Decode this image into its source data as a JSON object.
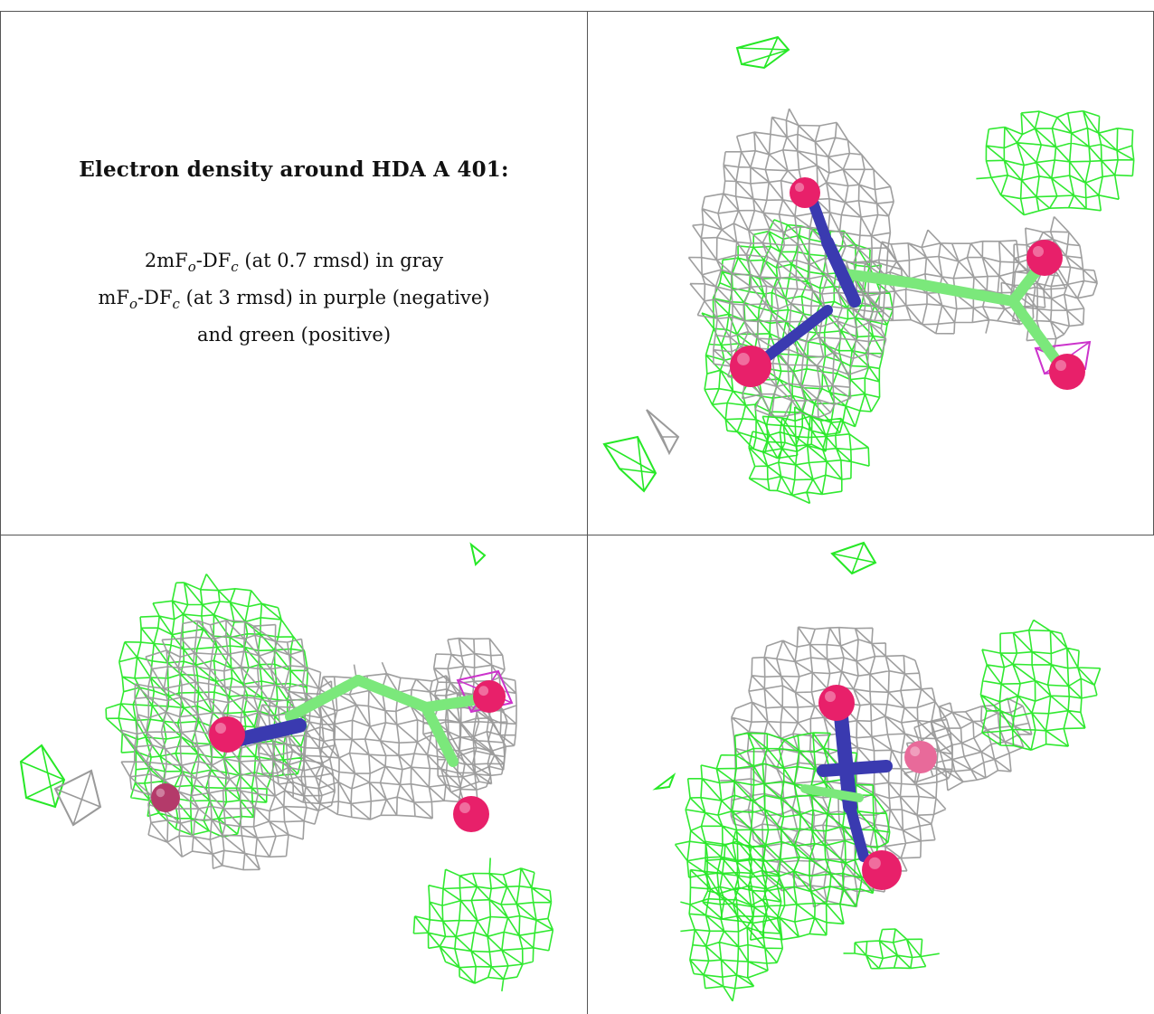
{
  "caption": {
    "title": "Electron density around HDA A 401:",
    "line1_pre": "2mF",
    "line1_sub1": "o",
    "line1_mid": "-DF",
    "line1_sub2": "c",
    "line1_post": " (at 0.7 rmsd) in gray",
    "line2_pre": "mF",
    "line2_sub1": "o",
    "line2_mid": "-DF",
    "line2_sub2": "c",
    "line2_post": " (at 3 rmsd) in purple (negative)",
    "line3": "and green (positive)"
  },
  "colors": {
    "gray_mesh": "#9a9a9a",
    "green_mesh": "#26e826",
    "purple_mesh": "#cc33cc",
    "oxygen": "#e8206a",
    "nitrogen": "#3a3ab0",
    "carbon": "#7be87b",
    "border": "#555555"
  },
  "panels": [
    {
      "name": "view-top-right"
    },
    {
      "name": "view-bottom-left"
    },
    {
      "name": "view-bottom-right"
    }
  ]
}
